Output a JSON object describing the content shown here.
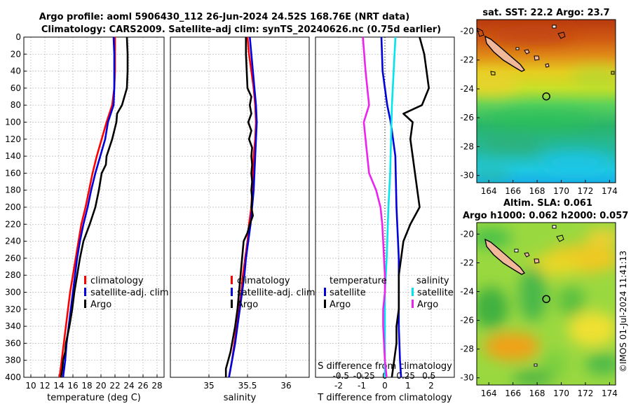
{
  "title": {
    "line1": "Argo profile: aoml 5906430_112 26-Jun-2024 24.52S 168.76E (NRT data)",
    "line2": "Climatology: CARS2009. Satellite-adj clim: synTS_20240626.nc (0.75d earlier)"
  },
  "credit": "©IMOS 01-Jul-2024 11:41:13",
  "colors": {
    "clim": "#ff0000",
    "sat": "#0000dd",
    "argo": "#000000",
    "sat_s": "#00e5ee",
    "argo_s": "#ee22ee"
  },
  "chart_data": [
    {
      "type": "line",
      "id": "temperature",
      "xlabel": "temperature (deg C)",
      "ylabel": "",
      "xlim": [
        9,
        29
      ],
      "ylim": [
        400,
        0
      ],
      "x_ticks": [
        10,
        12,
        14,
        16,
        18,
        20,
        22,
        24,
        26,
        28
      ],
      "y_ticks": [
        0,
        20,
        40,
        60,
        80,
        100,
        120,
        140,
        160,
        180,
        200,
        220,
        240,
        260,
        280,
        300,
        320,
        340,
        360,
        380,
        400
      ],
      "legend": [
        "climatology",
        "satellite-adj. clim",
        "Argo"
      ],
      "series": [
        {
          "name": "climatology",
          "color_key": "clim",
          "depth": [
            0,
            20,
            40,
            60,
            80,
            100,
            120,
            140,
            160,
            180,
            200,
            220,
            240,
            260,
            280,
            300,
            320,
            340,
            360,
            380,
            400
          ],
          "values": [
            22.0,
            22.0,
            22.0,
            21.9,
            21.6,
            20.8,
            20.1,
            19.4,
            18.8,
            18.3,
            17.8,
            17.2,
            16.8,
            16.4,
            16.0,
            15.6,
            15.3,
            15.0,
            14.7,
            14.4,
            14.1
          ]
        },
        {
          "name": "satellite-adj. clim",
          "color_key": "sat",
          "depth": [
            0,
            20,
            40,
            60,
            80,
            100,
            120,
            140,
            160,
            180,
            200,
            220,
            240,
            260,
            280,
            300,
            320,
            340,
            360,
            380,
            400
          ],
          "values": [
            21.8,
            21.9,
            21.9,
            21.9,
            21.8,
            21.0,
            20.6,
            19.9,
            19.2,
            18.6,
            18.1,
            17.5,
            17.0,
            16.6,
            16.3,
            16.0,
            15.7,
            15.4,
            15.1,
            14.9,
            14.6
          ]
        },
        {
          "name": "Argo",
          "color_key": "argo",
          "depth": [
            0,
            20,
            40,
            60,
            80,
            90,
            100,
            120,
            140,
            150,
            160,
            180,
            200,
            210,
            220,
            240,
            260,
            280,
            300,
            320,
            340,
            360,
            370,
            380,
            390,
            400
          ],
          "values": [
            23.7,
            23.8,
            23.8,
            23.7,
            23.0,
            22.3,
            22.2,
            21.6,
            20.8,
            20.7,
            20.1,
            19.7,
            19.2,
            18.8,
            18.4,
            17.5,
            17.0,
            16.6,
            16.2,
            15.9,
            15.5,
            15.0,
            14.9,
            14.6,
            14.5,
            14.3
          ]
        }
      ]
    },
    {
      "type": "line",
      "id": "salinity",
      "xlabel": "salinity",
      "xlim": [
        34.5,
        36.3
      ],
      "ylim": [
        400,
        0
      ],
      "x_ticks": [
        35,
        35.5,
        36
      ],
      "legend": [
        "climatology",
        "satellite-adj. clim",
        "Argo"
      ],
      "series": [
        {
          "name": "climatology",
          "color_key": "clim",
          "depth": [
            0,
            20,
            40,
            60,
            80,
            100,
            120,
            140,
            160,
            180,
            200,
            220,
            240,
            260,
            280,
            300,
            320,
            340,
            360,
            380,
            400
          ],
          "values": [
            35.5,
            35.52,
            35.55,
            35.58,
            35.6,
            35.61,
            35.6,
            35.58,
            35.57,
            35.56,
            35.55,
            35.52,
            35.5,
            35.47,
            35.44,
            35.42,
            35.39,
            35.36,
            35.33,
            35.3,
            35.26
          ]
        },
        {
          "name": "satellite-adj. clim",
          "color_key": "sat",
          "depth": [
            0,
            20,
            40,
            60,
            80,
            100,
            120,
            140,
            160,
            180,
            200,
            220,
            240,
            260,
            280,
            300,
            320,
            340,
            360,
            380,
            400
          ],
          "values": [
            35.53,
            35.55,
            35.57,
            35.59,
            35.61,
            35.62,
            35.61,
            35.6,
            35.59,
            35.58,
            35.56,
            35.54,
            35.51,
            35.48,
            35.46,
            35.43,
            35.4,
            35.37,
            35.34,
            35.3,
            35.26
          ]
        },
        {
          "name": "Argo",
          "color_key": "argo",
          "depth": [
            0,
            20,
            40,
            60,
            70,
            80,
            90,
            100,
            110,
            120,
            130,
            140,
            150,
            160,
            170,
            180,
            190,
            200,
            210,
            220,
            230,
            240,
            260,
            280,
            300,
            320,
            340,
            360,
            370,
            380,
            390,
            400
          ],
          "values": [
            35.48,
            35.48,
            35.49,
            35.5,
            35.55,
            35.53,
            35.55,
            35.51,
            35.55,
            35.52,
            35.56,
            35.55,
            35.56,
            35.55,
            35.56,
            35.55,
            35.56,
            35.55,
            35.57,
            35.53,
            35.5,
            35.45,
            35.43,
            35.41,
            35.39,
            35.37,
            35.34,
            35.3,
            35.28,
            35.25,
            35.22,
            35.22
          ]
        }
      ]
    },
    {
      "type": "line",
      "id": "differences",
      "xlabel": "T difference from climatology",
      "xlabel_top": "S difference from climatology",
      "xlim": [
        -3,
        3
      ],
      "ylim": [
        400,
        0
      ],
      "x_ticks": [
        -2,
        -1,
        0,
        1,
        2
      ],
      "x_ticks_s": [
        "-0.5",
        "-0.25",
        "0",
        "0.25",
        "0.5"
      ],
      "legend_t": {
        "title": "temperature",
        "items": [
          "satellite",
          "Argo"
        ]
      },
      "legend_s": {
        "title": "salinity",
        "items": [
          "satellite",
          "Argo"
        ]
      },
      "series": [
        {
          "name": "T satellite",
          "color_key": "sat",
          "depth": [
            0,
            40,
            60,
            80,
            100,
            140,
            200,
            260,
            300,
            340,
            380,
            400
          ],
          "values": [
            -0.15,
            -0.1,
            0,
            0.1,
            0.25,
            0.45,
            0.5,
            0.6,
            0.6,
            0.6,
            0.65,
            0.7
          ]
        },
        {
          "name": "T Argo",
          "color_key": "argo",
          "depth": [
            0,
            10,
            20,
            40,
            60,
            80,
            90,
            100,
            120,
            140,
            160,
            180,
            200,
            220,
            240,
            260,
            280,
            300,
            320,
            340,
            360,
            380,
            400
          ],
          "values": [
            1.5,
            1.6,
            1.7,
            1.8,
            1.9,
            1.6,
            0.8,
            1.2,
            1.1,
            1.2,
            1.3,
            1.4,
            1.5,
            1.1,
            0.8,
            0.7,
            0.6,
            0.6,
            0.6,
            0.5,
            0.5,
            0.4,
            0.3
          ]
        },
        {
          "name": "S satellite",
          "color_key": "sat_s",
          "depth": [
            0,
            80,
            160,
            200,
            260,
            300,
            400
          ],
          "values": [
            0.12,
            0.08,
            0.06,
            0.04,
            0.02,
            0.0,
            0.0
          ]
        },
        {
          "name": "S Argo",
          "color_key": "argo_s",
          "depth": [
            0,
            40,
            80,
            100,
            120,
            140,
            160,
            180,
            200,
            220,
            240,
            260,
            280,
            300,
            320,
            340,
            380,
            400
          ],
          "values": [
            -0.25,
            -0.22,
            -0.18,
            -0.24,
            -0.22,
            -0.2,
            -0.18,
            -0.1,
            -0.05,
            -0.03,
            -0.02,
            -0.01,
            0.0,
            0.0,
            -0.02,
            -0.02,
            0.0,
            0.02
          ]
        }
      ]
    },
    {
      "type": "heatmap",
      "id": "sst_map",
      "title": "sat. SST: 22.2 Argo: 23.7",
      "x_ticks": [
        164,
        166,
        168,
        170,
        172,
        174
      ],
      "y_ticks": [
        -20,
        -22,
        -24,
        -26,
        -28,
        -30
      ],
      "xlim": [
        163,
        174.5
      ],
      "ylim": [
        -30.5,
        -19.2
      ],
      "argo_position": [
        168.76,
        -24.52
      ]
    },
    {
      "type": "heatmap",
      "id": "sla_map",
      "title": "Altim. SLA: 0.061",
      "subtitle": "Argo h1000: 0.062 h2000: 0.057",
      "x_ticks": [
        164,
        166,
        168,
        170,
        172,
        174
      ],
      "y_ticks": [
        -20,
        -22,
        -24,
        -26,
        -28,
        -30
      ],
      "xlim": [
        163,
        174.5
      ],
      "ylim": [
        -30.5,
        -19.2
      ],
      "argo_position": [
        168.76,
        -24.52
      ]
    }
  ]
}
